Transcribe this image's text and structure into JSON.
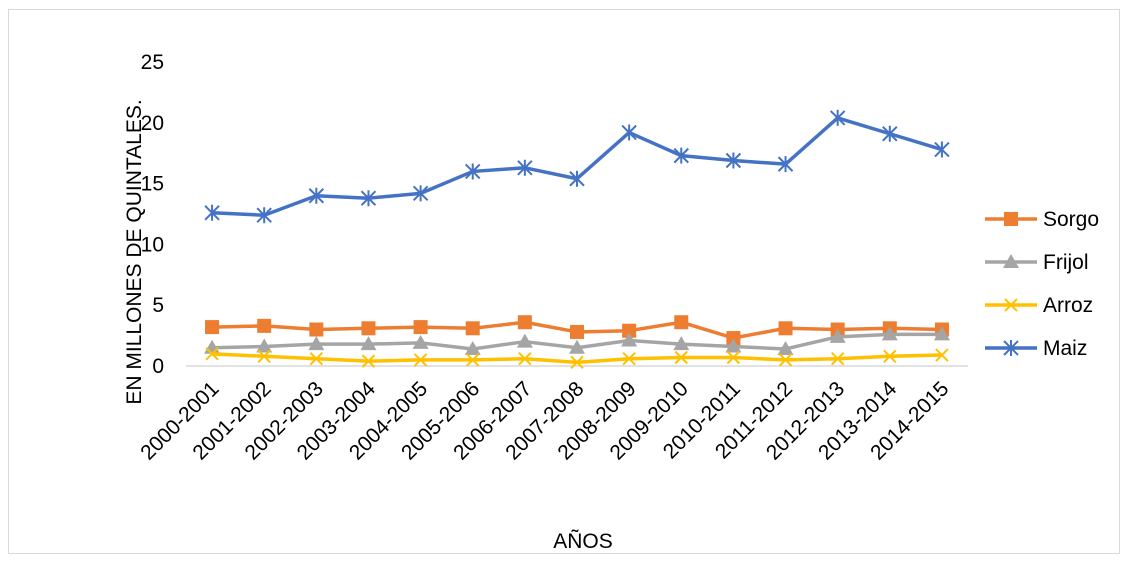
{
  "chart_data": {
    "type": "line",
    "title": "",
    "xlabel": "AÑOS",
    "ylabel": "EN MILLONES DE QUINTALES.",
    "ylim": [
      0,
      25
    ],
    "yticks": [
      0,
      5,
      10,
      15,
      20,
      25
    ],
    "grid": false,
    "legend_position": "right",
    "categories": [
      "2000-2001",
      "2001-2002",
      "2002-2003",
      "2003-2004",
      "2004-2005",
      "2005-2006",
      "2006-2007",
      "2007-2008",
      "2008-2009",
      "2009-2010",
      "2010-2011",
      "2011-2012",
      "2012-2013",
      "2013-2014",
      "2014-2015"
    ],
    "series": [
      {
        "name": "Sorgo",
        "color": "#ed7d31",
        "marker": "square",
        "values": [
          3.2,
          3.3,
          3.0,
          3.1,
          3.2,
          3.1,
          3.6,
          2.8,
          2.9,
          3.6,
          2.3,
          3.1,
          3.0,
          3.1,
          3.0
        ]
      },
      {
        "name": "Frijol",
        "color": "#a5a5a5",
        "marker": "triangle",
        "values": [
          1.5,
          1.6,
          1.8,
          1.8,
          1.9,
          1.4,
          2.0,
          1.5,
          2.1,
          1.8,
          1.6,
          1.4,
          2.4,
          2.6,
          2.6
        ]
      },
      {
        "name": "Arroz",
        "color": "#ffc000",
        "marker": "x",
        "values": [
          1.0,
          0.8,
          0.6,
          0.4,
          0.5,
          0.5,
          0.6,
          0.3,
          0.6,
          0.7,
          0.7,
          0.5,
          0.6,
          0.8,
          0.9
        ]
      },
      {
        "name": "Maiz",
        "color": "#4472c4",
        "marker": "star",
        "values": [
          12.6,
          12.4,
          14.0,
          13.8,
          14.2,
          16.0,
          16.3,
          15.4,
          19.2,
          17.3,
          16.9,
          16.6,
          20.4,
          19.1,
          17.8
        ]
      }
    ]
  }
}
